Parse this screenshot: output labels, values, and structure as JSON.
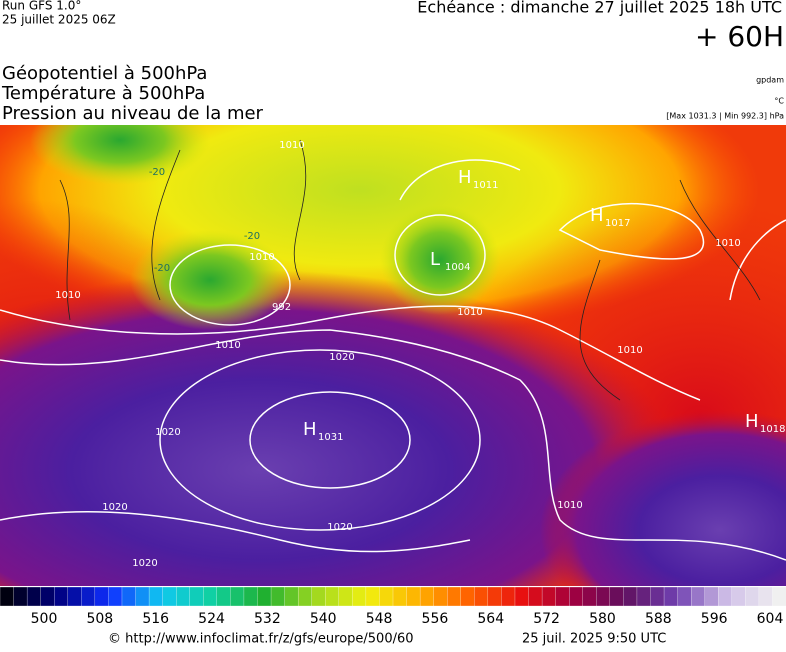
{
  "header": {
    "run": "Run GFS 1.0°",
    "run_date": "25 juillet 2025 06Z",
    "valid": "Echéance : dimanche 27 juillet 2025 18h UTC",
    "lead": "+ 60H"
  },
  "layers": [
    "Géopotentiel à 500hPa",
    "Température à 500hPa",
    "Pression au niveau de la mer"
  ],
  "units": {
    "geopotential": "gpdam",
    "temperature": "°C",
    "pressure": "[Max 1031.3 | Min 992.3] hPa"
  },
  "systems": [
    {
      "symbol": "H",
      "value": "1031"
    },
    {
      "symbol": "L",
      "value": "1004"
    },
    {
      "symbol": "H",
      "value": "1017"
    },
    {
      "symbol": "H",
      "value": "1018"
    },
    {
      "symbol": "H",
      "value": "1011"
    },
    {
      "symbol": "",
      "value": "992"
    }
  ],
  "isobar_labels": [
    "1020",
    "1020",
    "1020",
    "1020",
    "1020",
    "1010",
    "1010",
    "1010",
    "1010",
    "1010",
    "1010",
    "1010",
    "1010"
  ],
  "temperature_labels": [
    "-20",
    "-20",
    "-20"
  ],
  "colorbar": {
    "labels": [
      "500",
      "508",
      "516",
      "524",
      "532",
      "540",
      "548",
      "556",
      "564",
      "572",
      "580",
      "588",
      "596",
      "604"
    ]
  },
  "footer": {
    "url": "© http://www.infoclimat.fr/z/gfs/europe/500/60",
    "timestamp": "25 juil. 2025  9:50 UTC"
  }
}
